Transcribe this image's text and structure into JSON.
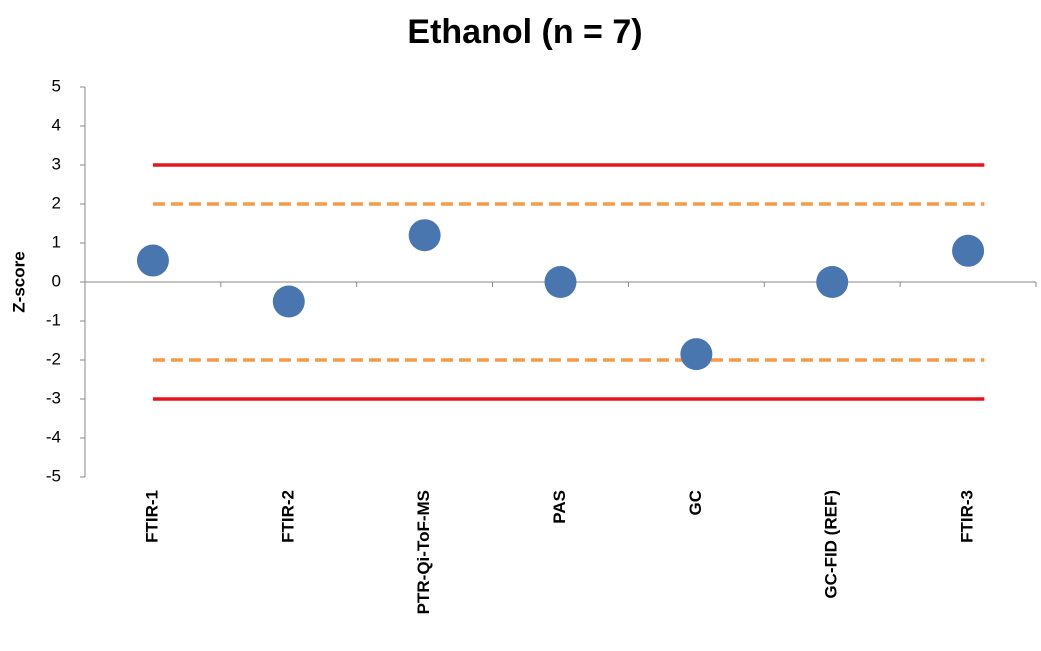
{
  "chart_data": {
    "type": "scatter",
    "title": "Ethanol (n = 7)",
    "y_label": "Z-score",
    "categories": [
      "FTIR-1",
      "FTIR-2",
      "PTR-Qi-ToF-MS",
      "PAS",
      "GC",
      "GC-FID (REF)",
      "FTIR-3"
    ],
    "values": [
      0.55,
      -0.5,
      1.2,
      0,
      -1.85,
      0,
      0.8
    ],
    "color": "#4a76b0",
    "ylim": [
      -5,
      5
    ],
    "yticks": [
      -5,
      -4,
      -3,
      -2,
      -1,
      0,
      1,
      2,
      3,
      4,
      5
    ],
    "reference_lines": [
      {
        "value": 3,
        "color": "#e8141c",
        "style": "solid"
      },
      {
        "value": 2,
        "color": "#f39a4b",
        "style": "dashed"
      },
      {
        "value": -2,
        "color": "#f39a4b",
        "style": "dashed"
      },
      {
        "value": -3,
        "color": "#e8141c",
        "style": "solid"
      }
    ]
  }
}
